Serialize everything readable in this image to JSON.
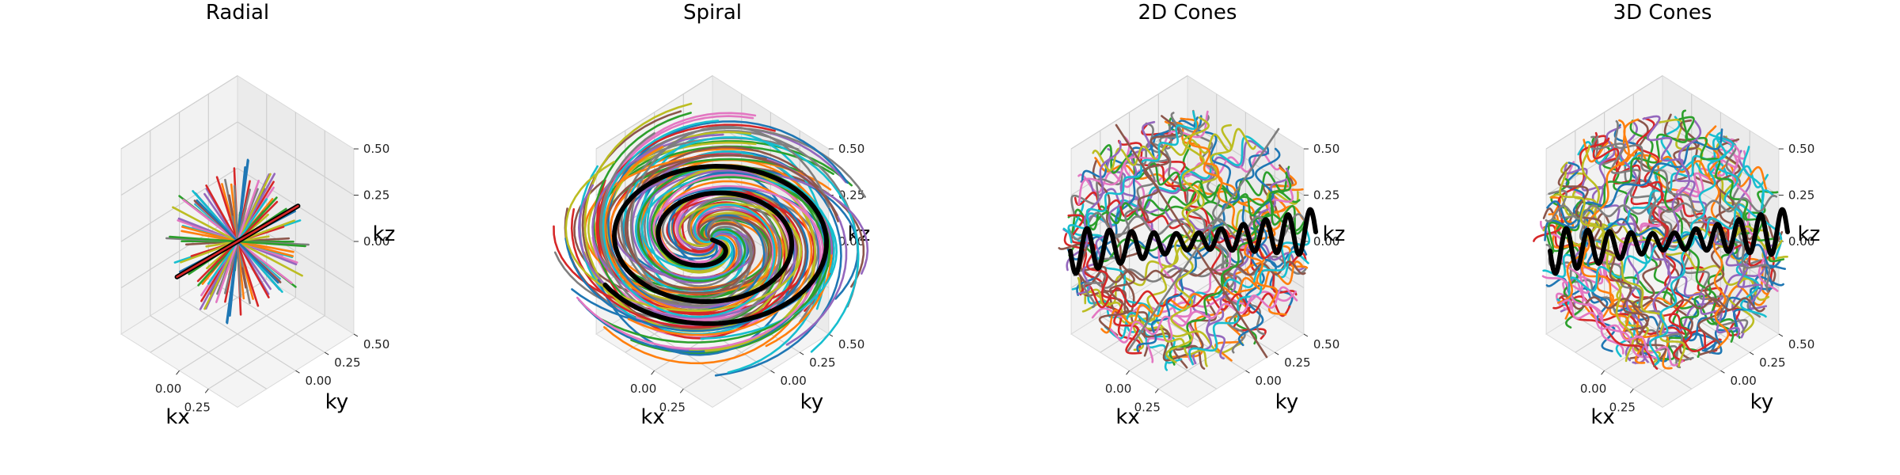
{
  "chart_data": [
    {
      "type": "3d-line",
      "title": "Radial",
      "xlabel": "kx",
      "ylabel": "ky",
      "zlabel": "kz",
      "xticks": [
        "0.00",
        "0.25"
      ],
      "yticks": [
        "0.00",
        "0.25",
        "0.50"
      ],
      "zticks": [
        "0.00",
        "0.25",
        "0.50"
      ],
      "xlim": [
        -0.5,
        0.5
      ],
      "ylim": [
        -0.5,
        0.5
      ],
      "zlim": [
        -0.5,
        0.5
      ],
      "grid": true,
      "trajectory": "radial spokes through center",
      "highlight_color": "#000000"
    },
    {
      "type": "3d-line",
      "title": "Spiral",
      "xlabel": "kx",
      "ylabel": "ky",
      "zlabel": "kz",
      "xticks": [
        "0.00",
        "0.25"
      ],
      "yticks": [
        "0.00",
        "0.25",
        "0.50"
      ],
      "zticks": [
        "0.00",
        "0.25",
        "0.50"
      ],
      "xlim": [
        -0.5,
        0.5
      ],
      "ylim": [
        -0.5,
        0.5
      ],
      "zlim": [
        -0.5,
        0.5
      ],
      "grid": true,
      "trajectory": "stacked spiral interleaves",
      "highlight_color": "#000000"
    },
    {
      "type": "3d-line",
      "title": "2D Cones",
      "xlabel": "kx",
      "ylabel": "ky",
      "zlabel": "kz",
      "xticks": [
        "0.00",
        "0.25"
      ],
      "yticks": [
        "0.00",
        "0.25",
        "0.50"
      ],
      "zticks": [
        "0.00",
        "0.25",
        "0.50"
      ],
      "xlim": [
        -0.5,
        0.5
      ],
      "ylim": [
        -0.5,
        0.5
      ],
      "zlim": [
        -0.5,
        0.5
      ],
      "grid": true,
      "trajectory": "2D cone waves",
      "highlight_color": "#000000"
    },
    {
      "type": "3d-line",
      "title": "3D Cones",
      "xlabel": "kx",
      "ylabel": "ky",
      "zlabel": "kz",
      "xticks": [
        "0.00",
        "0.25"
      ],
      "yticks": [
        "0.00",
        "0.25",
        "0.50"
      ],
      "zticks": [
        "0.00",
        "0.25",
        "0.50"
      ],
      "xlim": [
        -0.5,
        0.5
      ],
      "ylim": [
        -0.5,
        0.5
      ],
      "zlim": [
        -0.5,
        0.5
      ],
      "grid": true,
      "trajectory": "3D cone waves",
      "highlight_color": "#000000"
    }
  ],
  "palette": [
    "#1f77b4",
    "#ff7f0e",
    "#2ca02c",
    "#d62728",
    "#9467bd",
    "#8c564b",
    "#e377c2",
    "#7f7f7f",
    "#bcbd22",
    "#17becf"
  ]
}
